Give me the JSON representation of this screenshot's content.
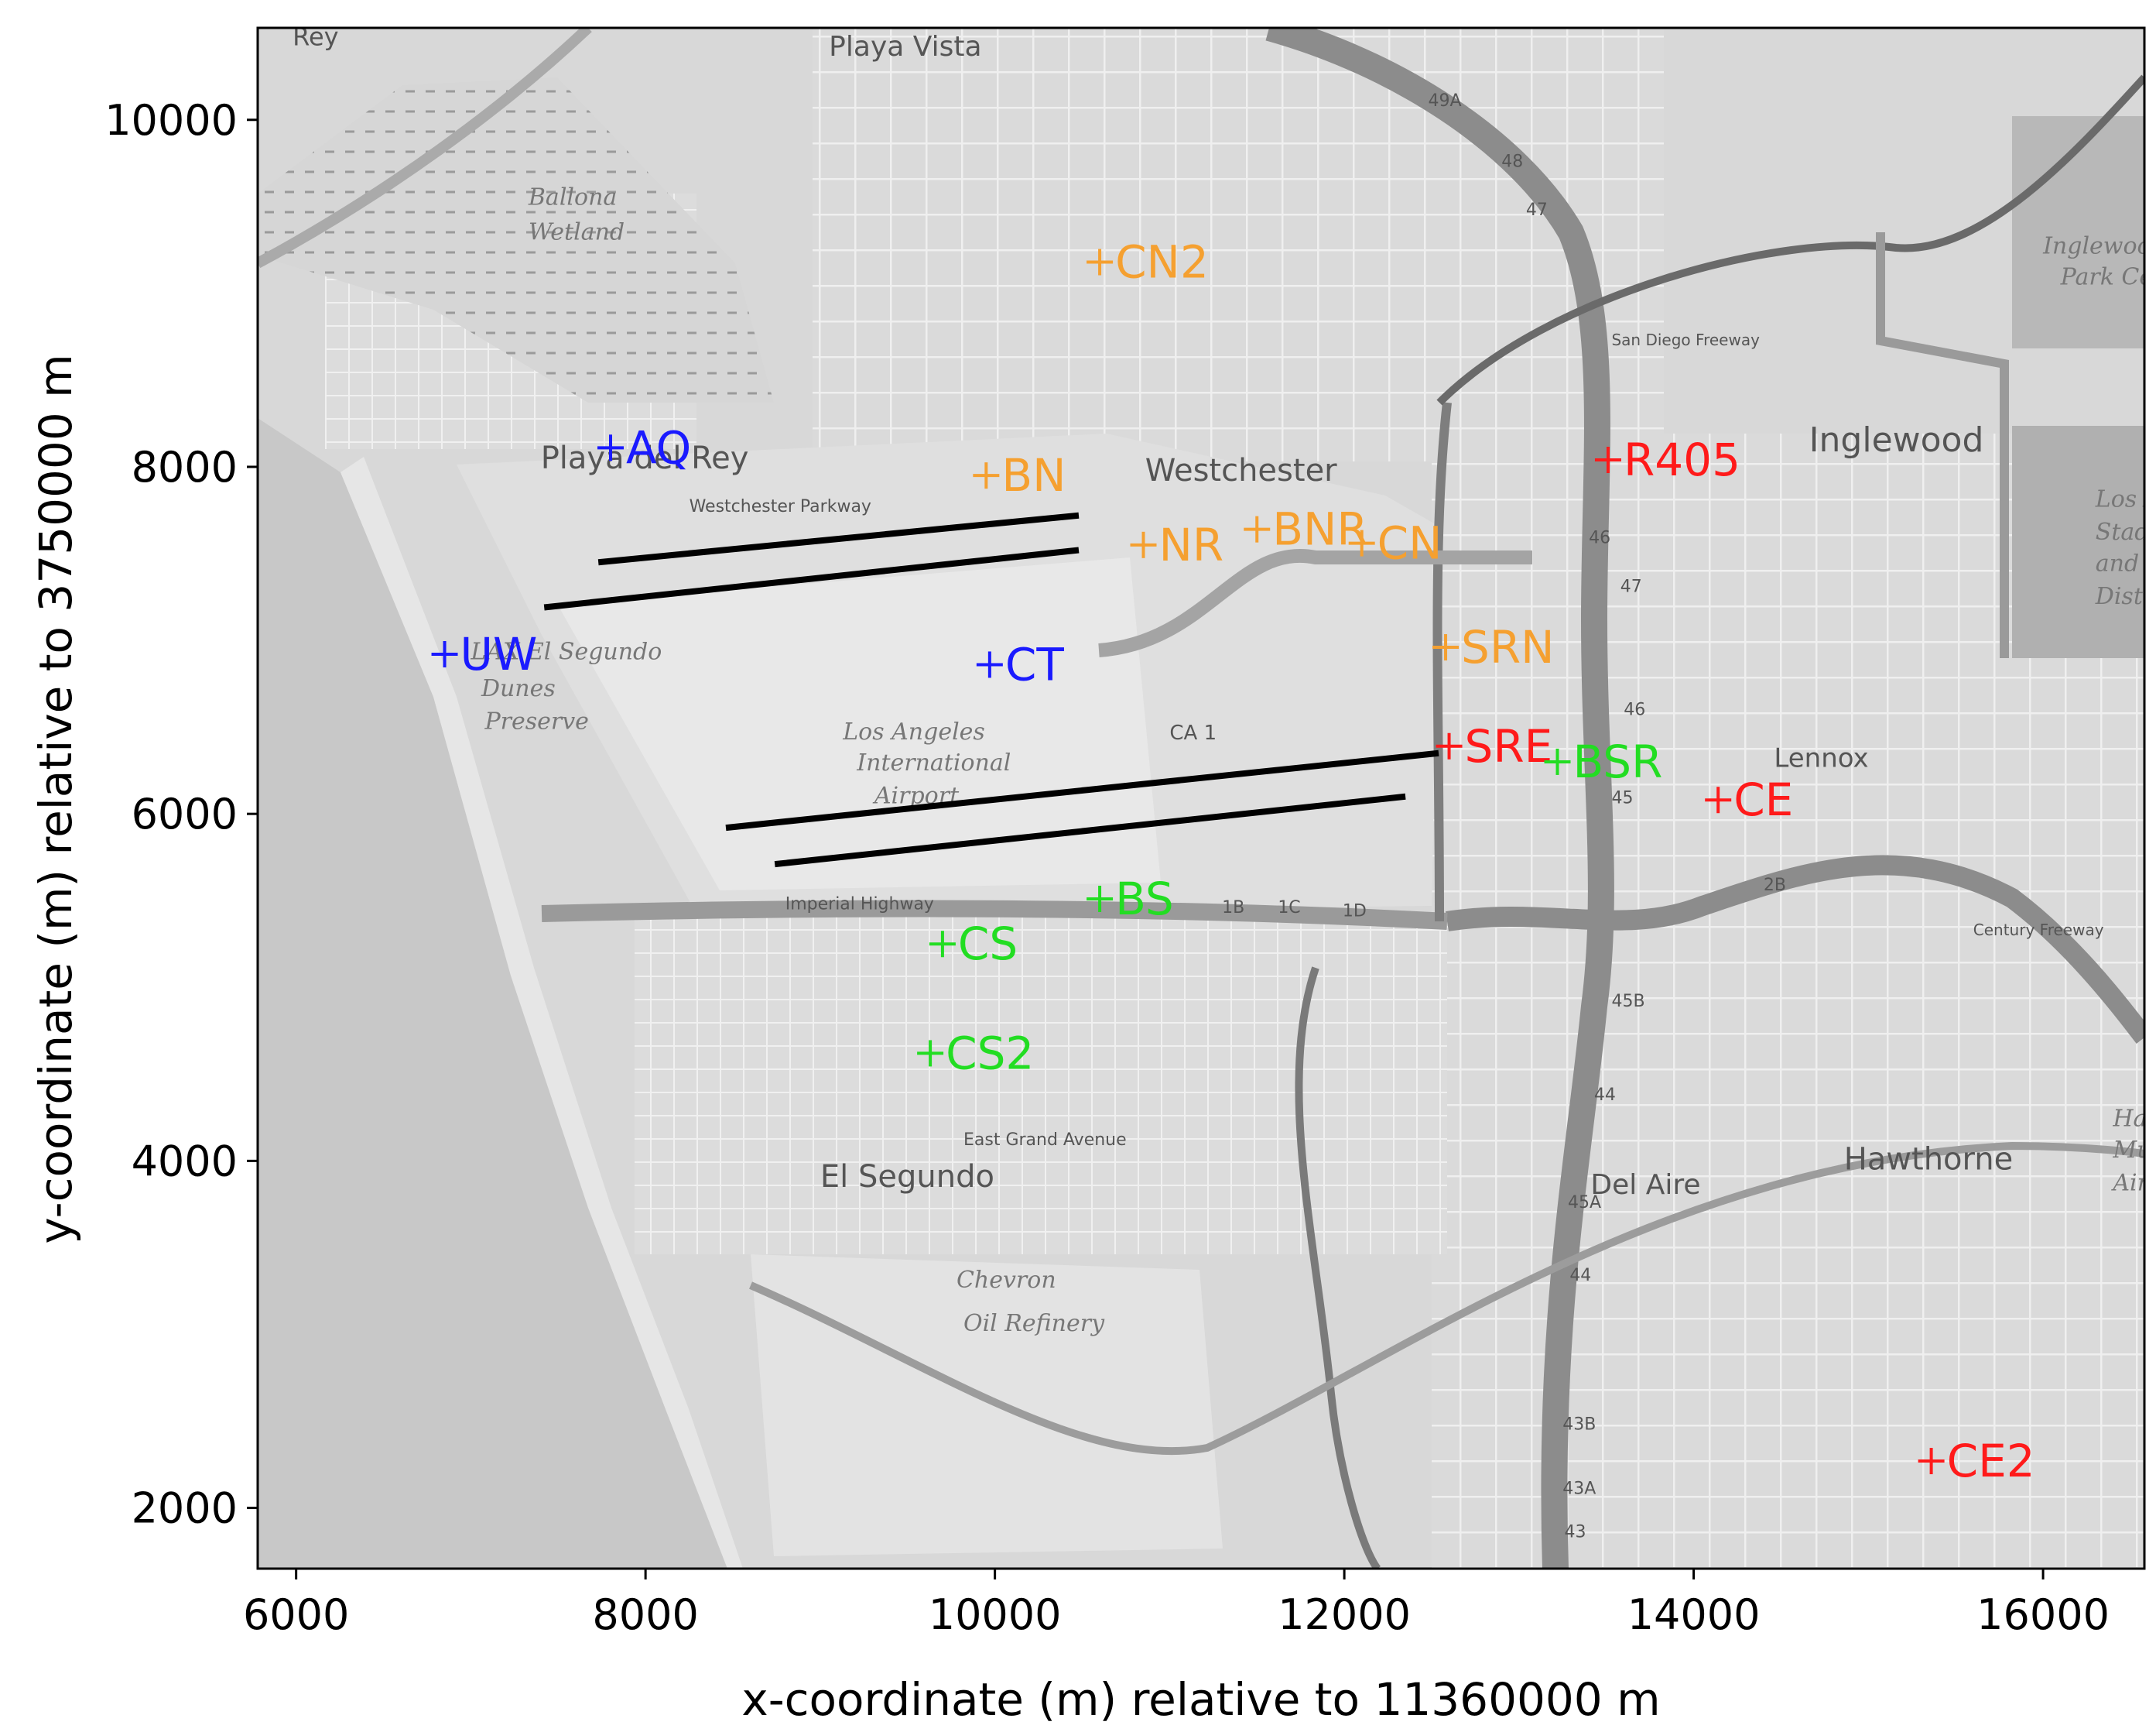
{
  "chart_data": {
    "type": "scatter",
    "xlabel": "x-coordinate (m) relative to 11360000 m",
    "ylabel": "y-coordinate (m) relative to 3750000 m",
    "xlim": [
      5780,
      16580
    ],
    "ylim": [
      1650,
      10530
    ],
    "x_ticks": [
      6000,
      8000,
      10000,
      12000,
      14000,
      16000
    ],
    "y_ticks": [
      2000,
      4000,
      6000,
      8000,
      10000
    ],
    "grid": false,
    "colors": {
      "blue": "#1a1aff",
      "orange": "#f5a030",
      "red": "#ff1a1a",
      "green": "#22dd22",
      "runway": "#000000"
    },
    "stations": [
      {
        "name": "AQ",
        "x": 7800,
        "y": 8110,
        "color": "blue"
      },
      {
        "name": "UW",
        "x": 6850,
        "y": 6920,
        "color": "blue"
      },
      {
        "name": "CT",
        "x": 9970,
        "y": 6860,
        "color": "blue"
      },
      {
        "name": "CN2",
        "x": 10600,
        "y": 9180,
        "color": "orange"
      },
      {
        "name": "BN",
        "x": 9950,
        "y": 7950,
        "color": "orange"
      },
      {
        "name": "NR",
        "x": 10850,
        "y": 7550,
        "color": "orange"
      },
      {
        "name": "BNR",
        "x": 11500,
        "y": 7640,
        "color": "orange"
      },
      {
        "name": "CN",
        "x": 12100,
        "y": 7560,
        "color": "orange"
      },
      {
        "name": "SRN",
        "x": 12580,
        "y": 6960,
        "color": "orange"
      },
      {
        "name": "R405",
        "x": 13510,
        "y": 8040,
        "color": "red"
      },
      {
        "name": "SRE",
        "x": 12600,
        "y": 6390,
        "color": "red"
      },
      {
        "name": "CE",
        "x": 14140,
        "y": 6080,
        "color": "red"
      },
      {
        "name": "CE2",
        "x": 15360,
        "y": 2270,
        "color": "red"
      },
      {
        "name": "BSR",
        "x": 13220,
        "y": 6300,
        "color": "green"
      },
      {
        "name": "BS",
        "x": 10600,
        "y": 5510,
        "color": "green"
      },
      {
        "name": "CS",
        "x": 9700,
        "y": 5250,
        "color": "green"
      },
      {
        "name": "CS2",
        "x": 9630,
        "y": 4620,
        "color": "green"
      }
    ],
    "runways": [
      {
        "x1": 7730,
        "y1": 7450,
        "x2": 10480,
        "y2": 7720
      },
      {
        "x1": 7420,
        "y1": 7190,
        "x2": 10480,
        "y2": 7520
      },
      {
        "x1": 8460,
        "y1": 5920,
        "x2": 12540,
        "y2": 6350
      },
      {
        "x1": 8740,
        "y1": 5710,
        "x2": 12350,
        "y2": 6100
      }
    ]
  },
  "map": {
    "place_labels": [
      {
        "text": "Playa Vista",
        "x": 9050,
        "y": 10370,
        "size": 36,
        "bold": false
      },
      {
        "text": "Playa del Rey",
        "x": 7400,
        "y": 7990,
        "size": 40,
        "bold": false
      },
      {
        "text": "Westchester",
        "x": 10860,
        "y": 7920,
        "size": 40,
        "bold": false
      },
      {
        "text": "Westchester Parkway",
        "x": 8250,
        "y": 7740,
        "size": 22,
        "bold": false
      },
      {
        "text": "Inglewood",
        "x": 14660,
        "y": 8090,
        "size": 44,
        "bold": false
      },
      {
        "text": "Lennox",
        "x": 14460,
        "y": 6270,
        "size": 34,
        "bold": false
      },
      {
        "text": "El Segundo",
        "x": 9000,
        "y": 3850,
        "size": 40,
        "bold": false
      },
      {
        "text": "Del Aire",
        "x": 13410,
        "y": 3810,
        "size": 36,
        "bold": false
      },
      {
        "text": "Hawthorne",
        "x": 14860,
        "y": 3950,
        "size": 40,
        "bold": false
      },
      {
        "text": "Imperial Highway",
        "x": 8800,
        "y": 5450,
        "size": 22,
        "bold": false
      },
      {
        "text": "East Grand Avenue",
        "x": 9820,
        "y": 4090,
        "size": 22,
        "bold": false
      },
      {
        "text": "CA 1",
        "x": 11000,
        "y": 6430,
        "size": 26,
        "bold": false
      },
      {
        "text": "Rey",
        "x": 5980,
        "y": 10430,
        "size": 32,
        "bold": false
      },
      {
        "text": "49A",
        "x": 12480,
        "y": 10080,
        "size": 22,
        "bold": false
      },
      {
        "text": "48",
        "x": 12900,
        "y": 9730,
        "size": 22,
        "bold": false
      },
      {
        "text": "47",
        "x": 13040,
        "y": 9450,
        "size": 22,
        "bold": false
      },
      {
        "text": "46",
        "x": 13400,
        "y": 7560,
        "size": 22,
        "bold": false
      },
      {
        "text": "47",
        "x": 13580,
        "y": 7280,
        "size": 22,
        "bold": false
      },
      {
        "text": "46",
        "x": 13600,
        "y": 6570,
        "size": 22,
        "bold": false
      },
      {
        "text": "45",
        "x": 13530,
        "y": 6060,
        "size": 22,
        "bold": false
      },
      {
        "text": "45B",
        "x": 13530,
        "y": 4890,
        "size": 22,
        "bold": false
      },
      {
        "text": "44",
        "x": 13430,
        "y": 4350,
        "size": 22,
        "bold": false
      },
      {
        "text": "45A",
        "x": 13280,
        "y": 3730,
        "size": 22,
        "bold": false
      },
      {
        "text": "44",
        "x": 13290,
        "y": 3310,
        "size": 22,
        "bold": false
      },
      {
        "text": "43B",
        "x": 13250,
        "y": 2450,
        "size": 22,
        "bold": false
      },
      {
        "text": "43A",
        "x": 13250,
        "y": 2080,
        "size": 22,
        "bold": false
      },
      {
        "text": "43",
        "x": 13260,
        "y": 1830,
        "size": 22,
        "bold": false
      },
      {
        "text": "2B",
        "x": 14400,
        "y": 5560,
        "size": 22,
        "bold": false
      },
      {
        "text": "1B",
        "x": 11300,
        "y": 5430,
        "size": 22,
        "bold": false
      },
      {
        "text": "1C",
        "x": 11620,
        "y": 5430,
        "size": 22,
        "bold": false
      },
      {
        "text": "1D",
        "x": 11990,
        "y": 5410,
        "size": 22,
        "bold": false
      },
      {
        "text": "Century Freeway",
        "x": 15600,
        "y": 5300,
        "size": 20,
        "bold": false
      },
      {
        "text": "San Diego Freeway",
        "x": 13530,
        "y": 8700,
        "size": 20,
        "bold": false
      }
    ],
    "italic_labels": [
      {
        "text": "Ballona",
        "x": 7330,
        "y": 9510
      },
      {
        "text": "Wetland",
        "x": 7330,
        "y": 9310
      },
      {
        "text": "Los Angeles",
        "x": 9130,
        "y": 6430
      },
      {
        "text": "International",
        "x": 9210,
        "y": 6250
      },
      {
        "text": "Airport",
        "x": 9310,
        "y": 6060
      },
      {
        "text": "LAX El Segundo",
        "x": 7000,
        "y": 6890
      },
      {
        "text": "Dunes",
        "x": 7060,
        "y": 6680
      },
      {
        "text": "Preserve",
        "x": 7080,
        "y": 6490
      },
      {
        "text": "Chevron",
        "x": 9780,
        "y": 3270
      },
      {
        "text": "Oil Refinery",
        "x": 9820,
        "y": 3020
      },
      {
        "text": "Inglewood",
        "x": 16000,
        "y": 9230
      },
      {
        "text": "Park Cemetery",
        "x": 16100,
        "y": 9050
      },
      {
        "text": "Los Angeles",
        "x": 16300,
        "y": 7770
      },
      {
        "text": "Stadium",
        "x": 16300,
        "y": 7580
      },
      {
        "text": "and Entertainment",
        "x": 16300,
        "y": 7400
      },
      {
        "text": "District",
        "x": 16300,
        "y": 7210
      },
      {
        "text": "Hawthorne",
        "x": 16400,
        "y": 4200
      },
      {
        "text": "Municipal",
        "x": 16400,
        "y": 4020
      },
      {
        "text": "Airport",
        "x": 16400,
        "y": 3830
      }
    ]
  }
}
